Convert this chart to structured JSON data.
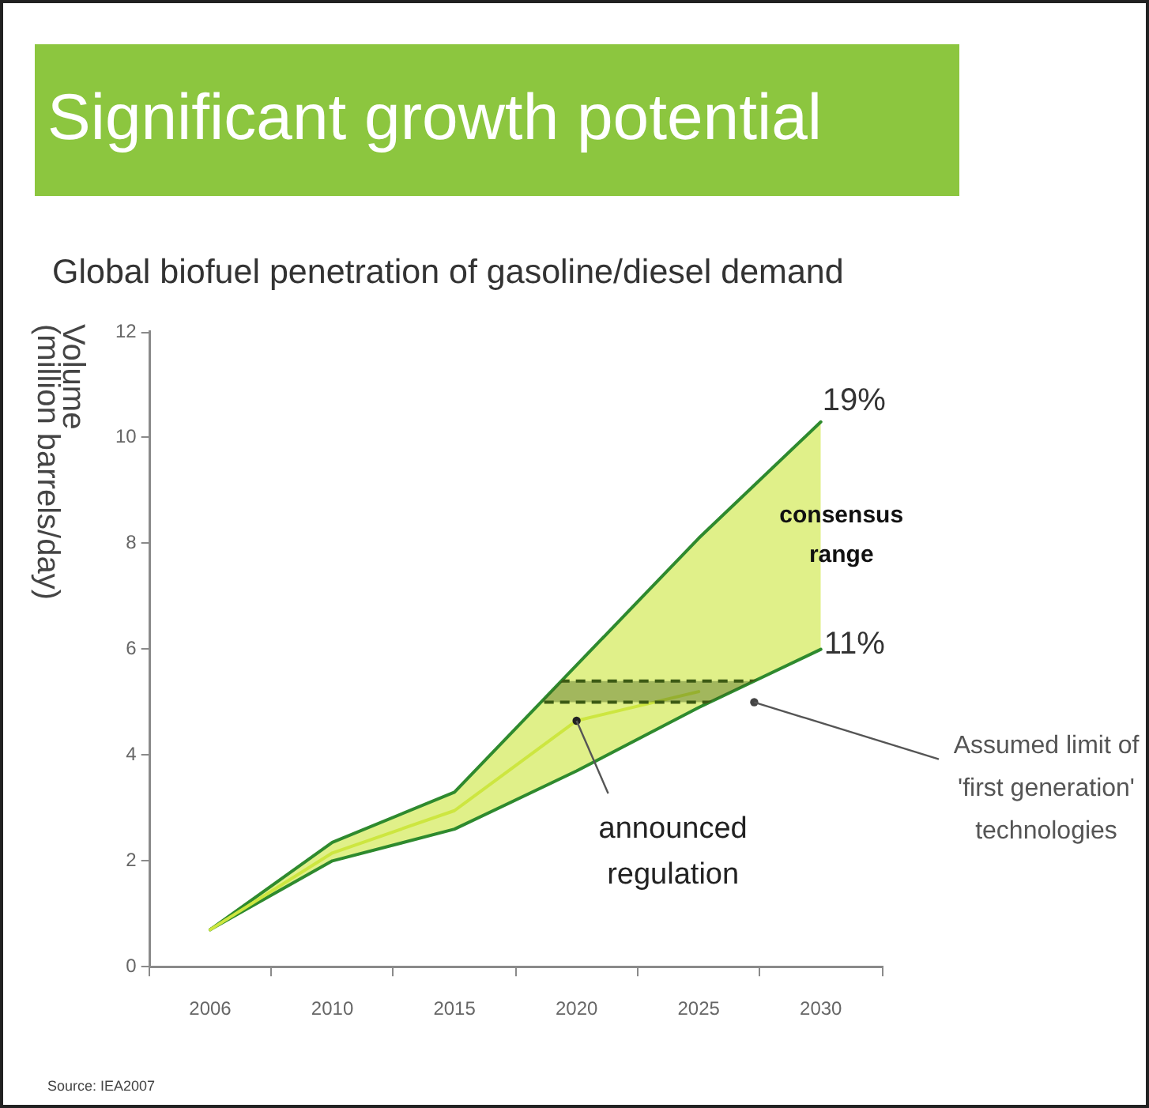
{
  "chart_data": {
    "type": "line",
    "title": "Significant growth potential",
    "subtitle": "Global biofuel penetration of gasoline/diesel demand",
    "ylabel": "Volume\n(million barrels/day)",
    "categories": [
      "2006",
      "2010",
      "2015",
      "2020",
      "2025",
      "2030"
    ],
    "series": [
      {
        "color": "#cde640",
        "values": [
          0.7,
          2.15,
          2.95,
          4.65,
          5.2,
          null
        ],
        "lower": [
          0.7,
          2.0,
          2.6,
          3.7,
          4.9,
          6.0
        ],
        "upper": [
          0.7,
          2.35,
          3.3,
          5.7,
          8.1,
          10.3
        ]
      }
    ],
    "ylim": [
      0,
      12
    ],
    "yticks": [
      0,
      2,
      4,
      6,
      8,
      10,
      12
    ],
    "bands": [
      {
        "axis": "y",
        "from": 5.0,
        "to": 5.4,
        "label": "Assumed limit of 'first generation' technologies",
        "color": "#3c5a14"
      }
    ],
    "ref_lines": [
      {
        "axis": "y",
        "value": 5.4,
        "color": "#3c5a14",
        "line_style": "dashed"
      },
      {
        "axis": "y",
        "value": 5.0,
        "color": "#3c5a14",
        "line_style": "dashed"
      }
    ],
    "annotations": [
      {
        "text": "consensus range",
        "x": "2030",
        "y": 8.2
      },
      {
        "text": "announced regulation",
        "x": "2020",
        "y": 4.65
      },
      {
        "text": "19%",
        "x": "2030",
        "y": 10.3
      },
      {
        "text": "11%",
        "x": "2030",
        "y": 6.0
      },
      "Source: IEA2007"
    ]
  }
}
